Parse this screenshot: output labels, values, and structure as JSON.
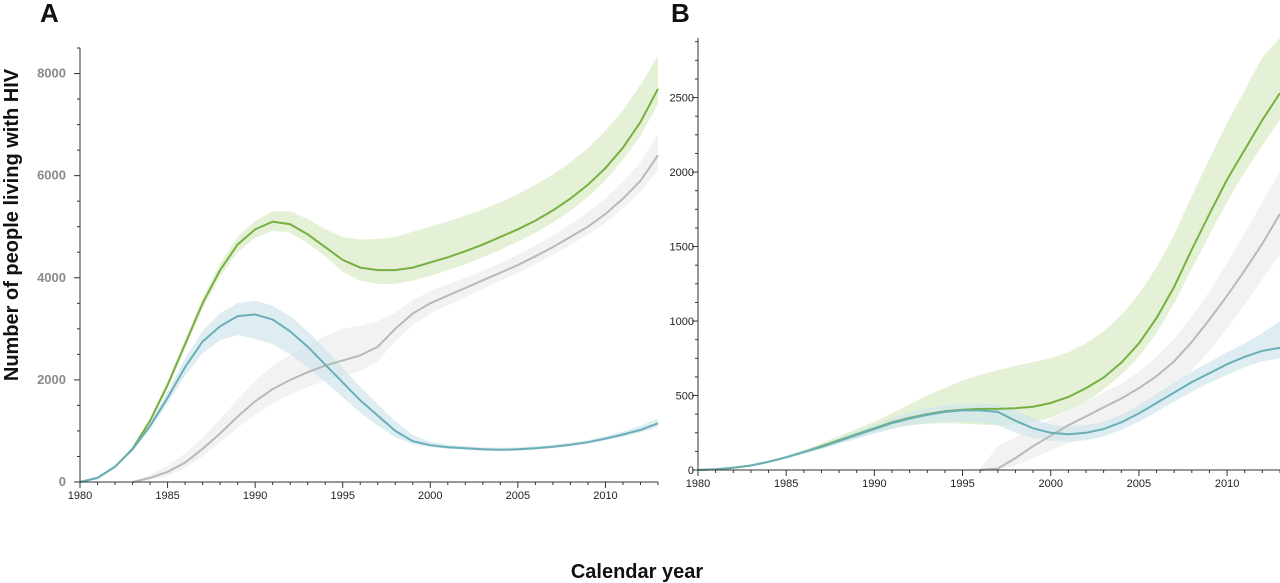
{
  "figure": {
    "ylabel": "Number of people living with HIV",
    "xlabel": "Calendar year"
  },
  "colors": {
    "green": "#76b041",
    "green_band": "#d9ebc4",
    "teal": "#6aaeb8",
    "teal_band": "#cfe6ec",
    "grey": "#b9b9b9",
    "grey_band": "#ececec",
    "axis": "#333333"
  },
  "chart_data": [
    {
      "type": "line",
      "panel": "A",
      "xlim": [
        1980,
        2013
      ],
      "ylim": [
        0,
        8500
      ],
      "x_ticks": [
        1980,
        1985,
        1990,
        1995,
        2000,
        2005,
        2010
      ],
      "y_ticks": [
        0,
        2000,
        4000,
        6000,
        8000
      ],
      "series": [
        {
          "color_key": "grey",
          "x": [
            1983,
            1984,
            1985,
            1986,
            1987,
            1988,
            1989,
            1990,
            1991,
            1992,
            1993,
            1994,
            1995,
            1996,
            1997,
            1998,
            1999,
            2000,
            2001,
            2002,
            2003,
            2004,
            2005,
            2006,
            2007,
            2008,
            2009,
            2010,
            2011,
            2012,
            2013
          ],
          "y": [
            0,
            80,
            200,
            380,
            650,
            950,
            1280,
            1580,
            1820,
            2000,
            2150,
            2280,
            2380,
            2480,
            2650,
            3000,
            3300,
            3500,
            3650,
            3800,
            3950,
            4100,
            4250,
            4420,
            4600,
            4800,
            5000,
            5250,
            5550,
            5900,
            6400
          ],
          "lower": [
            0,
            40,
            120,
            270,
            500,
            780,
            1060,
            1320,
            1540,
            1720,
            1860,
            1980,
            2080,
            2170,
            2360,
            2760,
            3080,
            3300,
            3460,
            3620,
            3780,
            3940,
            4100,
            4270,
            4450,
            4640,
            4840,
            5080,
            5360,
            5680,
            6100
          ],
          "upper": [
            0,
            140,
            320,
            560,
            870,
            1230,
            1620,
            1980,
            2280,
            2490,
            2680,
            2860,
            3000,
            3060,
            3150,
            3320,
            3560,
            3740,
            3870,
            4000,
            4140,
            4290,
            4450,
            4630,
            4830,
            5050,
            5290,
            5560,
            5880,
            6260,
            6800
          ]
        },
        {
          "color_key": "green",
          "x": [
            1980,
            1981,
            1982,
            1983,
            1984,
            1985,
            1986,
            1987,
            1988,
            1989,
            1990,
            1991,
            1992,
            1993,
            1994,
            1995,
            1996,
            1997,
            1998,
            1999,
            2000,
            2001,
            2002,
            2003,
            2004,
            2005,
            2006,
            2007,
            2008,
            2009,
            2010,
            2011,
            2012,
            2013
          ],
          "y": [
            0,
            80,
            300,
            650,
            1200,
            1900,
            2700,
            3500,
            4150,
            4650,
            4950,
            5100,
            5050,
            4850,
            4600,
            4350,
            4200,
            4150,
            4150,
            4200,
            4300,
            4400,
            4520,
            4650,
            4800,
            4950,
            5120,
            5320,
            5550,
            5820,
            6150,
            6550,
            7050,
            7700
          ],
          "lower": [
            0,
            70,
            280,
            620,
            1150,
            1830,
            2620,
            3400,
            4030,
            4500,
            4780,
            4920,
            4880,
            4680,
            4420,
            4120,
            3940,
            3880,
            3880,
            3940,
            4040,
            4150,
            4270,
            4400,
            4550,
            4710,
            4880,
            5080,
            5310,
            5580,
            5910,
            6310,
            6780,
            7400
          ],
          "upper": [
            0,
            90,
            320,
            680,
            1250,
            1980,
            2800,
            3600,
            4280,
            4800,
            5120,
            5300,
            5300,
            5150,
            4950,
            4800,
            4750,
            4760,
            4800,
            4900,
            5000,
            5100,
            5220,
            5340,
            5480,
            5640,
            5820,
            6020,
            6260,
            6540,
            6880,
            7280,
            7780,
            8350
          ]
        },
        {
          "color_key": "teal",
          "x": [
            1980,
            1981,
            1982,
            1983,
            1984,
            1985,
            1986,
            1987,
            1988,
            1989,
            1990,
            1991,
            1992,
            1993,
            1994,
            1995,
            1996,
            1997,
            1998,
            1999,
            2000,
            2001,
            2002,
            2003,
            2004,
            2005,
            2006,
            2007,
            2008,
            2009,
            2010,
            2011,
            2012,
            2013
          ],
          "y": [
            0,
            80,
            300,
            640,
            1100,
            1650,
            2250,
            2750,
            3050,
            3250,
            3280,
            3180,
            2950,
            2650,
            2300,
            1950,
            1600,
            1300,
            1000,
            800,
            720,
            680,
            660,
            640,
            630,
            640,
            660,
            690,
            730,
            780,
            850,
            930,
            1020,
            1150
          ],
          "lower": [
            0,
            70,
            280,
            600,
            1030,
            1540,
            2080,
            2520,
            2780,
            2880,
            2800,
            2700,
            2500,
            2250,
            1960,
            1660,
            1360,
            1100,
            880,
            740,
            680,
            650,
            630,
            610,
            600,
            610,
            630,
            660,
            700,
            750,
            820,
            890,
            970,
            1080
          ],
          "upper": [
            0,
            90,
            320,
            680,
            1170,
            1760,
            2420,
            2960,
            3310,
            3500,
            3550,
            3450,
            3250,
            2950,
            2600,
            2240,
            1860,
            1520,
            1190,
            920,
            790,
            730,
            700,
            680,
            670,
            680,
            700,
            730,
            770,
            820,
            900,
            990,
            1100,
            1240
          ]
        }
      ]
    },
    {
      "type": "line",
      "panel": "B",
      "xlim": [
        1980,
        2013
      ],
      "ylim": [
        0,
        2900
      ],
      "x_ticks": [
        1980,
        1985,
        1990,
        1995,
        2000,
        2005,
        2010
      ],
      "y_ticks": [
        0,
        500,
        1000,
        1500,
        2000,
        2500
      ],
      "series": [
        {
          "color_key": "grey",
          "x": [
            1996,
            1997,
            1998,
            1999,
            2000,
            2001,
            2002,
            2003,
            2004,
            2005,
            2006,
            2007,
            2008,
            2009,
            2010,
            2011,
            2012,
            2013
          ],
          "y": [
            0,
            10,
            80,
            160,
            230,
            300,
            360,
            420,
            480,
            550,
            630,
            730,
            860,
            1010,
            1170,
            1340,
            1520,
            1720
          ],
          "lower": [
            0,
            0,
            30,
            80,
            130,
            180,
            230,
            280,
            330,
            390,
            460,
            550,
            670,
            800,
            950,
            1110,
            1280,
            1450
          ],
          "upper": [
            10,
            160,
            220,
            280,
            340,
            400,
            460,
            520,
            580,
            660,
            760,
            880,
            1030,
            1200,
            1390,
            1590,
            1800,
            2000
          ]
        },
        {
          "color_key": "green",
          "x": [
            1980,
            1981,
            1982,
            1983,
            1984,
            1985,
            1986,
            1987,
            1988,
            1989,
            1990,
            1991,
            1992,
            1993,
            1994,
            1995,
            1996,
            1997,
            1998,
            1999,
            2000,
            2001,
            2002,
            2003,
            2004,
            2005,
            2006,
            2007,
            2008,
            2009,
            2010,
            2011,
            2012,
            2013
          ],
          "y": [
            0,
            5,
            15,
            30,
            55,
            85,
            120,
            160,
            200,
            240,
            280,
            320,
            350,
            375,
            395,
            405,
            410,
            410,
            415,
            425,
            450,
            490,
            550,
            620,
            720,
            850,
            1020,
            1230,
            1480,
            1720,
            1950,
            2150,
            2350,
            2530
          ],
          "lower": [
            0,
            5,
            14,
            28,
            50,
            78,
            110,
            145,
            180,
            215,
            250,
            280,
            300,
            310,
            315,
            310,
            305,
            300,
            305,
            320,
            350,
            400,
            460,
            540,
            640,
            760,
            920,
            1120,
            1350,
            1580,
            1800,
            2000,
            2180,
            2350
          ],
          "upper": [
            0,
            6,
            17,
            34,
            62,
            96,
            135,
            180,
            228,
            275,
            325,
            380,
            440,
            500,
            550,
            600,
            640,
            670,
            700,
            725,
            750,
            790,
            850,
            930,
            1040,
            1180,
            1360,
            1580,
            1840,
            2090,
            2330,
            2550,
            2770,
            2900
          ]
        },
        {
          "color_key": "teal",
          "x": [
            1980,
            1981,
            1982,
            1983,
            1984,
            1985,
            1986,
            1987,
            1988,
            1989,
            1990,
            1991,
            1992,
            1993,
            1994,
            1995,
            1996,
            1997,
            1998,
            1999,
            2000,
            2001,
            2002,
            2003,
            2004,
            2005,
            2006,
            2007,
            2008,
            2009,
            2010,
            2011,
            2012,
            2013
          ],
          "y": [
            0,
            5,
            15,
            30,
            55,
            85,
            120,
            155,
            195,
            235,
            275,
            315,
            345,
            370,
            390,
            400,
            400,
            390,
            330,
            280,
            250,
            240,
            250,
            275,
            320,
            380,
            450,
            520,
            590,
            650,
            710,
            760,
            800,
            820
          ],
          "lower": [
            0,
            5,
            14,
            28,
            50,
            78,
            110,
            140,
            175,
            210,
            245,
            275,
            300,
            315,
            325,
            325,
            320,
            300,
            250,
            215,
            195,
            190,
            200,
            225,
            270,
            325,
            390,
            460,
            525,
            585,
            640,
            690,
            730,
            750
          ],
          "upper": [
            0,
            6,
            17,
            34,
            62,
            94,
            132,
            172,
            215,
            260,
            305,
            350,
            385,
            415,
            435,
            445,
            445,
            440,
            400,
            345,
            305,
            290,
            300,
            325,
            370,
            435,
            510,
            585,
            660,
            725,
            790,
            850,
            920,
            1000
          ]
        }
      ]
    }
  ]
}
